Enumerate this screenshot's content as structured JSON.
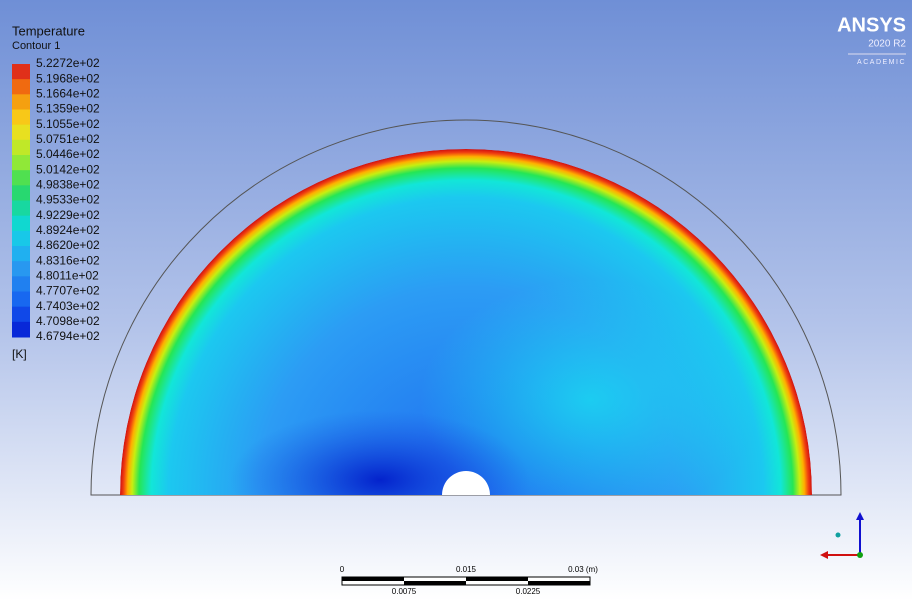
{
  "legend": {
    "title": "Temperature",
    "subtitle": "Contour 1",
    "labels": [
      "5.2272e+02",
      "5.1968e+02",
      "5.1664e+02",
      "5.1359e+02",
      "5.1055e+02",
      "5.0751e+02",
      "5.0446e+02",
      "5.0142e+02",
      "4.9838e+02",
      "4.9533e+02",
      "4.9229e+02",
      "4.8924e+02",
      "4.8620e+02",
      "4.8316e+02",
      "4.8011e+02",
      "4.7707e+02",
      "4.7403e+02",
      "4.7098e+02",
      "4.6794e+02"
    ],
    "unit": "[K]"
  },
  "logo": {
    "name": "ANSYS",
    "version": "2020 R2",
    "edition": "ACADEMIC"
  },
  "scale_bar": {
    "top_labels": [
      "0",
      "0.015",
      "0.03 (m)"
    ],
    "bottom_labels": [
      "0.0075",
      "0.0225"
    ]
  }
}
